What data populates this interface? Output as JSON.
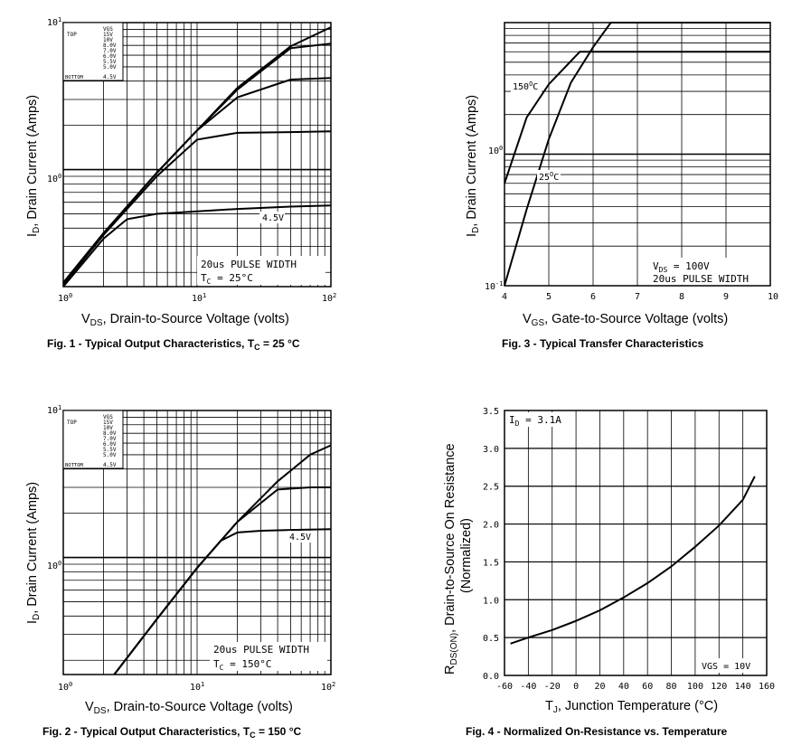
{
  "chart_data": [
    {
      "type": "line",
      "axis_scale": "log-log",
      "title": "Fig. 1 - Typical Output Characteristics, T",
      "title_sub": "C",
      "title_suffix": " = 25 °C",
      "ylabel_main": "I",
      "ylabel_sub": "D",
      "ylabel_rest": ", Drain Current (Amps)",
      "xlabel_main": "V",
      "xlabel_sub": "DS",
      "xlabel_rest": ", Drain-to-Source Voltage (volts)",
      "x_ticks": [
        {
          "base": "10",
          "exp": "0"
        },
        {
          "base": "10",
          "exp": "1"
        },
        {
          "base": "10",
          "exp": "2"
        }
      ],
      "y_ticks": [
        {
          "base": "10",
          "exp": "1"
        },
        {
          "base": "10",
          "exp": "0"
        }
      ],
      "xlim": [
        1,
        100
      ],
      "ylim": [
        0.16,
        10
      ],
      "legend": {
        "header": "VGS",
        "top_label": "TOP",
        "bottom_label": "BOTTOM",
        "entries": [
          "15V",
          "10V",
          "8.0V",
          "7.0V",
          "6.0V",
          "5.5V",
          "5.0V",
          "4.5V"
        ]
      },
      "annotation_line1": "20us PULSE WIDTH",
      "annotation_line2_main": "T",
      "annotation_line2_sub": "C",
      "annotation_line2_rest": " = 25°C",
      "curve_label": "4.5V",
      "series": [
        {
          "name": "15V",
          "x": [
            1,
            2,
            5,
            10,
            20,
            50,
            100
          ],
          "y": [
            0.17,
            0.37,
            0.95,
            1.85,
            3.6,
            6.9,
            9.3
          ]
        },
        {
          "name": "10V",
          "x": [
            1,
            2,
            5,
            10,
            20,
            50,
            100
          ],
          "y": [
            0.17,
            0.37,
            0.95,
            1.85,
            3.5,
            6.7,
            7.2
          ]
        },
        {
          "name": "6.0V",
          "x": [
            1,
            2,
            5,
            10,
            20,
            50,
            100
          ],
          "y": [
            0.17,
            0.37,
            0.95,
            1.85,
            3.1,
            4.1,
            4.2
          ]
        },
        {
          "name": "5.5V",
          "x": [
            1,
            2,
            5,
            10,
            20,
            50,
            100
          ],
          "y": [
            0.165,
            0.36,
            0.9,
            1.6,
            1.78,
            1.8,
            1.82
          ]
        },
        {
          "name": "4.5V",
          "x": [
            1,
            2,
            3,
            5,
            10,
            20,
            50,
            100
          ],
          "y": [
            0.16,
            0.34,
            0.46,
            0.5,
            0.52,
            0.54,
            0.56,
            0.57
          ]
        }
      ]
    },
    {
      "type": "line",
      "axis_scale": "semilog-y",
      "title": "Fig. 3 - Typical Transfer Characteristics",
      "ylabel_main": "I",
      "ylabel_sub": "D",
      "ylabel_rest": ", Drain Current (Amps)",
      "xlabel_main": "V",
      "xlabel_sub": "GS",
      "xlabel_rest": ", Gate-to-Source Voltage (volts)",
      "x_ticks": [
        "4",
        "5",
        "6",
        "7",
        "8",
        "9",
        "10"
      ],
      "y_ticks": [
        {
          "base": "10",
          "exp": "0"
        },
        {
          "base": "10",
          "exp": "-1"
        }
      ],
      "xlim": [
        4,
        10
      ],
      "ylim": [
        0.1,
        10
      ],
      "annotation_line1_main": "V",
      "annotation_line1_sub": "DS",
      "annotation_line1_rest": " = 100V",
      "annotation_line2": "20us PULSE WIDTH",
      "label_150_main": "150",
      "label_150_sup": "O",
      "label_150_rest": "C",
      "label_25_main": "25",
      "label_25_sup": "O",
      "label_25_rest": "C",
      "series": [
        {
          "name": "150°C",
          "x": [
            4,
            4.5,
            5,
            5.5,
            5.7,
            6,
            8,
            10
          ],
          "y": [
            0.6,
            1.9,
            3.4,
            5.1,
            6.0,
            6.0,
            6.0,
            6.0
          ]
        },
        {
          "name": "25°C",
          "x": [
            4,
            4.5,
            5,
            5.5,
            6,
            6.4,
            8,
            10
          ],
          "y": [
            0.1,
            0.38,
            1.3,
            3.5,
            6.5,
            10,
            10,
            10
          ]
        }
      ]
    },
    {
      "type": "line",
      "axis_scale": "log-log",
      "title": "Fig. 2 - Typical Output Characteristics, T",
      "title_sub": "C",
      "title_suffix": " = 150 °C",
      "ylabel_main": "I",
      "ylabel_sub": "D",
      "ylabel_rest": ", Drain Current (Amps)",
      "xlabel_main": "V",
      "xlabel_sub": "DS",
      "xlabel_rest": ", Drain-to-Source Voltage (volts)",
      "x_ticks": [
        {
          "base": "10",
          "exp": "0"
        },
        {
          "base": "10",
          "exp": "1"
        },
        {
          "base": "10",
          "exp": "2"
        }
      ],
      "y_ticks": [
        {
          "base": "10",
          "exp": "1"
        },
        {
          "base": "10",
          "exp": "0"
        }
      ],
      "xlim": [
        1,
        100
      ],
      "ylim": [
        0.16,
        10
      ],
      "legend": {
        "header": "VGS",
        "top_label": "TOP",
        "bottom_label": "BOTTOM",
        "entries": [
          "15V",
          "10V",
          "8.0V",
          "7.0V",
          "6.0V",
          "5.5V",
          "5.0V",
          "4.5V"
        ]
      },
      "annotation_line1": "20us PULSE WIDTH",
      "annotation_line2_main": "T",
      "annotation_line2_sub": "C",
      "annotation_line2_rest": " = 150°C",
      "curve_label": "4.5V",
      "series": [
        {
          "name": "15V",
          "x": [
            2.4,
            5,
            10,
            20,
            40,
            70,
            100
          ],
          "y": [
            0.16,
            0.38,
            0.85,
            1.75,
            3.3,
            5.0,
            5.8
          ]
        },
        {
          "name": "6.0V",
          "x": [
            2.4,
            5,
            10,
            20,
            40,
            70,
            100
          ],
          "y": [
            0.16,
            0.38,
            0.85,
            1.75,
            2.9,
            3.0,
            3.0
          ]
        },
        {
          "name": "4.5V",
          "x": [
            2.4,
            5,
            10,
            15,
            20,
            30,
            50,
            100
          ],
          "y": [
            0.16,
            0.38,
            0.85,
            1.3,
            1.48,
            1.52,
            1.54,
            1.56
          ]
        }
      ]
    },
    {
      "type": "line",
      "axis_scale": "linear",
      "title": "Fig. 4 - Normalized On-Resistance vs. Temperature",
      "ylabel_main": "R",
      "ylabel_sub": "DS(ON)",
      "ylabel_rest": ", Drain-to-Source On Resistance",
      "ylabel_line2": "(Normalized)",
      "xlabel_main": "T",
      "xlabel_sub": "J",
      "xlabel_rest": ", Junction Temperature (°C)",
      "x_ticks": [
        "-60",
        "-40",
        "-20",
        "0",
        "20",
        "40",
        "60",
        "80",
        "100",
        "120",
        "140",
        "160"
      ],
      "y_ticks": [
        "0.0",
        "0.5",
        "1.0",
        "1.5",
        "2.0",
        "2.5",
        "3.0",
        "3.5"
      ],
      "xlim": [
        -60,
        160
      ],
      "ylim": [
        0,
        3.5
      ],
      "annotation_top_main": "I",
      "annotation_top_sub": "D",
      "annotation_top_rest": " = 3.1A",
      "annotation_bottom": "VGS = 10V",
      "series": [
        {
          "name": "RDS(on)",
          "x": [
            -55,
            -40,
            -20,
            0,
            20,
            40,
            60,
            80,
            100,
            120,
            140,
            150
          ],
          "y": [
            0.42,
            0.5,
            0.6,
            0.72,
            0.86,
            1.03,
            1.22,
            1.44,
            1.7,
            1.98,
            2.32,
            2.63
          ]
        }
      ]
    }
  ]
}
